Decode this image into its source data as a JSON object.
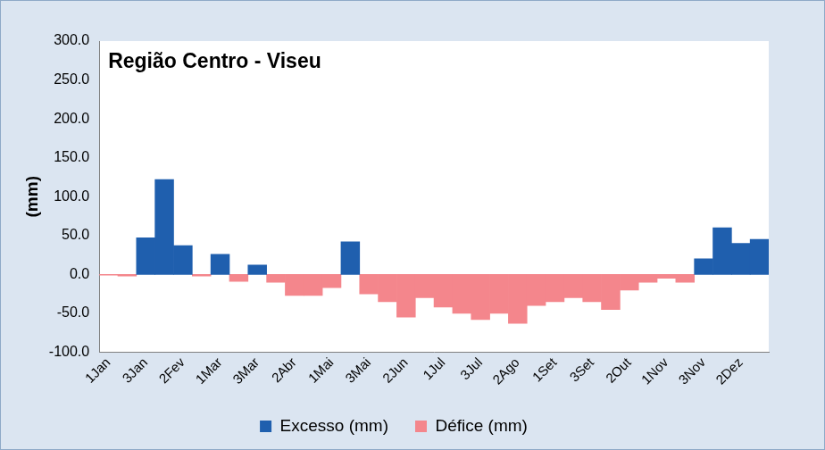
{
  "chart_data": {
    "type": "bar",
    "title": "Região Centro - Viseu",
    "y_label": "(mm)",
    "categories": [
      "1Jan",
      null,
      "3Jan",
      null,
      "2Fev",
      null,
      "1Mar",
      null,
      "3Mar",
      null,
      "2Abr",
      null,
      "1Mai",
      null,
      "3Mai",
      null,
      "2Jun",
      null,
      "1Jul",
      null,
      "3Jul",
      null,
      "2Ago",
      null,
      "1Set",
      null,
      "3Set",
      null,
      "2Out",
      null,
      "1Nov",
      null,
      "3Nov",
      null,
      "2Dez",
      null
    ],
    "series": [
      {
        "name": "Excesso (mm)",
        "color": "#1f5fae",
        "values": [
          null,
          null,
          47,
          122,
          37,
          null,
          26,
          null,
          12,
          null,
          null,
          null,
          null,
          42,
          null,
          null,
          null,
          null,
          null,
          null,
          null,
          null,
          null,
          null,
          null,
          null,
          null,
          null,
          null,
          null,
          null,
          null,
          20,
          60,
          40,
          45
        ]
      },
      {
        "name": "Défice (mm)",
        "color": "#f4868c",
        "values": [
          -1,
          -2,
          null,
          null,
          null,
          -2,
          null,
          -9,
          null,
          -10,
          -27,
          -27,
          -17,
          null,
          -25,
          -35,
          -55,
          -30,
          -42,
          -50,
          -58,
          -50,
          -63,
          -40,
          -35,
          -30,
          -35,
          -45,
          -20,
          -10,
          -5,
          -10,
          null,
          null,
          null,
          null
        ]
      }
    ],
    "ylim": [
      -100,
      300
    ],
    "yticks": [
      {
        "value": -100,
        "label": "-100.0"
      },
      {
        "value": -50,
        "label": "-50.0"
      },
      {
        "value": 0,
        "label": "0.0"
      },
      {
        "value": 50,
        "label": "50.0"
      },
      {
        "value": 100,
        "label": "100.0"
      },
      {
        "value": 150,
        "label": "150.0"
      },
      {
        "value": 200,
        "label": "200.0"
      },
      {
        "value": 250,
        "label": "250.0"
      },
      {
        "value": 300,
        "label": "300.0"
      }
    ],
    "stacked": true,
    "grid": false,
    "legend": "bottom"
  }
}
